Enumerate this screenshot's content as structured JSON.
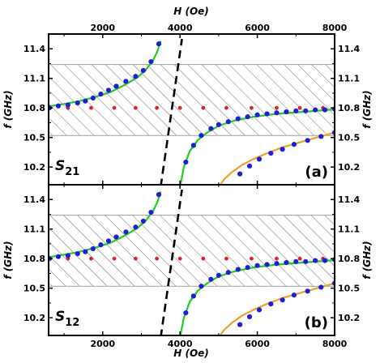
{
  "chart_data": {
    "type": "scatter",
    "x_axis": {
      "label": "H (Oe)",
      "range": [
        600,
        8000
      ],
      "ticks": [
        2000,
        4000,
        6000,
        8000
      ]
    },
    "y_axis": {
      "label": "f (GHz)",
      "range": [
        10.02,
        11.55
      ],
      "ticks": [
        10.2,
        10.5,
        10.8,
        11.1,
        11.4
      ]
    },
    "hatched_band": {
      "y_range": [
        10.52,
        11.24
      ]
    },
    "panels": [
      {
        "name": "S21",
        "tag": "(a)",
        "label_main": "S",
        "label_sub": "21"
      },
      {
        "name": "S12",
        "tag": "(b)",
        "label_main": "S",
        "label_sub": "12"
      }
    ],
    "series": {
      "blue_points": [
        [
          620,
          10.8
        ],
        [
          850,
          10.82
        ],
        [
          1100,
          10.83
        ],
        [
          1350,
          10.85
        ],
        [
          1550,
          10.87
        ],
        [
          1750,
          10.9
        ],
        [
          1950,
          10.94
        ],
        [
          2150,
          10.98
        ],
        [
          2350,
          11.02
        ],
        [
          2600,
          11.07
        ],
        [
          2850,
          11.12
        ],
        [
          3050,
          11.18
        ],
        [
          3250,
          11.27
        ],
        [
          3450,
          11.45
        ],
        [
          4000,
          10.0
        ],
        [
          4150,
          10.25
        ],
        [
          4350,
          10.42
        ],
        [
          4550,
          10.52
        ],
        [
          4800,
          10.59
        ],
        [
          5000,
          10.63
        ],
        [
          5250,
          10.66
        ],
        [
          5500,
          10.69
        ],
        [
          5750,
          10.71
        ],
        [
          6000,
          10.73
        ],
        [
          6250,
          10.74
        ],
        [
          6500,
          10.75
        ],
        [
          6750,
          10.76
        ],
        [
          7000,
          10.77
        ],
        [
          7250,
          10.77
        ],
        [
          7500,
          10.78
        ],
        [
          7750,
          10.78
        ],
        [
          8000,
          10.79
        ],
        [
          5300,
          10.0
        ],
        [
          5550,
          10.13
        ],
        [
          5800,
          10.21
        ],
        [
          6050,
          10.28
        ],
        [
          6350,
          10.34
        ],
        [
          6650,
          10.38
        ],
        [
          6950,
          10.43
        ],
        [
          7300,
          10.47
        ],
        [
          7650,
          10.51
        ],
        [
          8000,
          10.55
        ]
      ],
      "red_points": [
        [
          1100,
          10.8
        ],
        [
          1700,
          10.8
        ],
        [
          2300,
          10.8
        ],
        [
          2850,
          10.8
        ],
        [
          3400,
          10.8
        ],
        [
          4000,
          10.8
        ],
        [
          4600,
          10.8
        ],
        [
          5200,
          10.8
        ],
        [
          5850,
          10.8
        ],
        [
          6500,
          10.8
        ],
        [
          7100,
          10.8
        ],
        [
          7700,
          10.8
        ]
      ],
      "green_curve_lower_x": [
        600,
        1000,
        1400,
        1800,
        2200,
        2600,
        2900,
        3100,
        3300,
        3420,
        3500
      ],
      "green_curve_lower_y": [
        10.815,
        10.84,
        10.87,
        10.91,
        10.96,
        11.04,
        11.11,
        11.18,
        11.28,
        11.38,
        11.48
      ],
      "green_curve_upper_x": [
        4000,
        4100,
        4250,
        4450,
        4700,
        5000,
        5400,
        5900,
        6500,
        7200,
        8000
      ],
      "green_curve_upper_y": [
        10.0,
        10.2,
        10.36,
        10.47,
        10.55,
        10.62,
        10.67,
        10.71,
        10.74,
        10.76,
        10.785
      ],
      "orange_curve_x": [
        5000,
        5150,
        5350,
        5600,
        5900,
        6250,
        6650,
        7100,
        7550,
        8000
      ],
      "orange_curve_y": [
        10.0,
        10.08,
        10.15,
        10.22,
        10.28,
        10.34,
        10.4,
        10.45,
        10.5,
        10.55
      ],
      "dashed_line_x": [
        3500,
        4050
      ],
      "dashed_line_y": [
        10.0,
        11.5
      ]
    },
    "colors": {
      "blue": "#1f1fd6",
      "red": "#e0202a",
      "green": "#22cc22",
      "orange": "#f39c2a"
    },
    "grid": false,
    "legend": "none"
  }
}
